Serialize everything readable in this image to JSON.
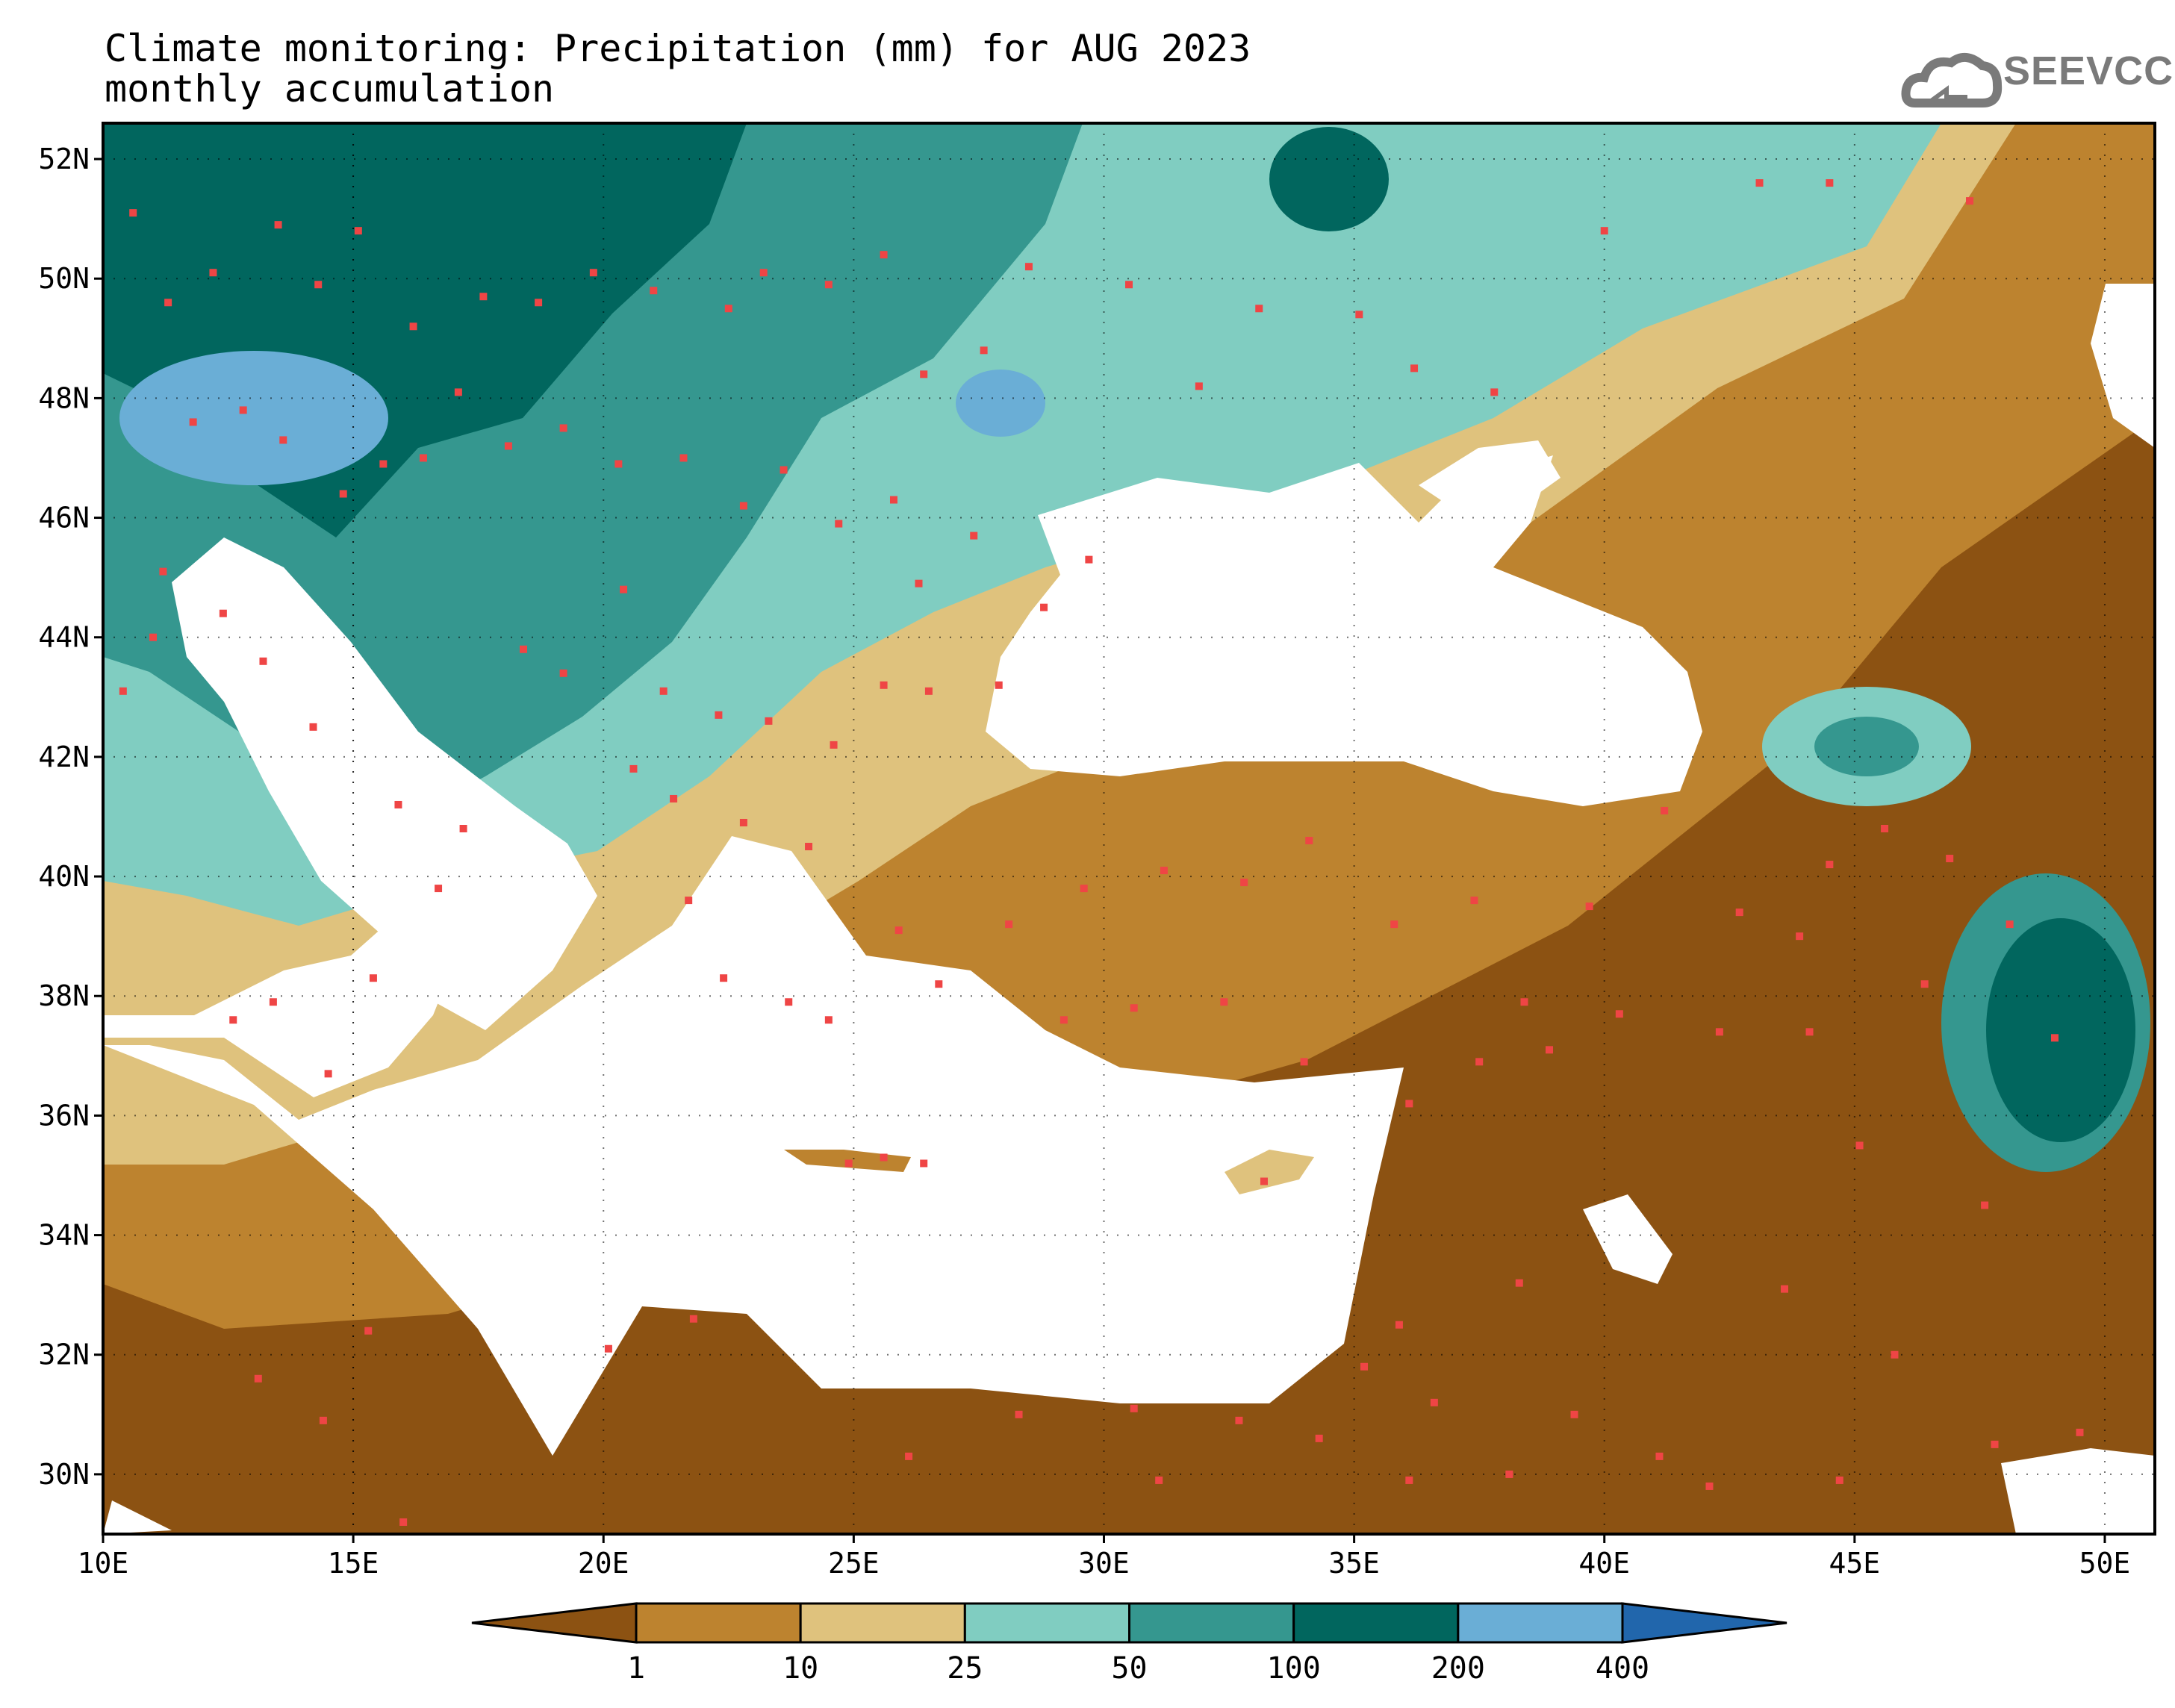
{
  "header": {
    "title_line1": "Climate monitoring: Precipitation (mm) for AUG 2023",
    "title_line2": "monthly accumulation",
    "logo_text": "SEEVCCC",
    "logo_icon": "cloud-icon"
  },
  "map": {
    "lon_range": [
      10,
      51
    ],
    "lat_range": [
      29,
      52.6
    ],
    "lon_ticks": [
      "10E",
      "15E",
      "20E",
      "25E",
      "30E",
      "35E",
      "40E",
      "45E",
      "50E"
    ],
    "lat_ticks": [
      "30N",
      "32N",
      "34N",
      "36N",
      "38N",
      "40N",
      "42N",
      "44N",
      "46N",
      "48N",
      "50N",
      "52N"
    ],
    "gridlines": "dotted",
    "station_marker_color": "#ef4545",
    "sea_color": "#ffffff"
  },
  "legend": {
    "boundaries": [
      "1",
      "10",
      "25",
      "50",
      "100",
      "200",
      "400"
    ],
    "colors": [
      "#8c5212",
      "#bd832f",
      "#dfc27d",
      "#80cdc1",
      "#35978f",
      "#01665e",
      "#6aaed6",
      "#2166ac"
    ],
    "extend": "both"
  }
}
